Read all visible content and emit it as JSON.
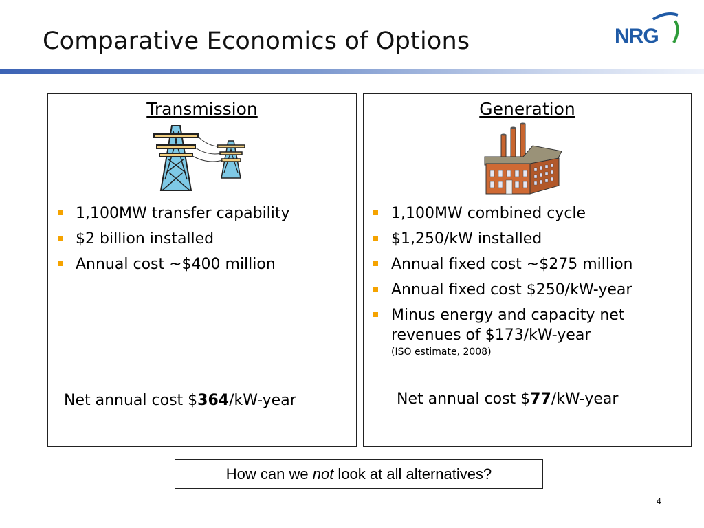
{
  "slide": {
    "title": "Comparative Economics of Options",
    "logo_text": "NRG",
    "page_number": "4"
  },
  "colors": {
    "title_bar": "#3c63b5",
    "bullet": "#f5a300",
    "logo_blue": "#1f5aa6",
    "logo_green": "#2e9b3a"
  },
  "transmission": {
    "heading": "Transmission",
    "icon": "transmission-tower-icon",
    "bullets": [
      "1,100MW transfer capability",
      "$2 billion installed",
      "Annual cost ~$400 million"
    ],
    "net_cost": {
      "prefix": "Net annual cost $",
      "value": "364",
      "suffix": "/kW-year"
    }
  },
  "generation": {
    "heading": "Generation",
    "icon": "factory-icon",
    "bullets": [
      "1,100MW combined cycle",
      "$1,250/kW installed",
      "Annual fixed cost ~$275 million",
      "Annual fixed cost $250/kW-year",
      "Minus energy and capacity net revenues of $173/kW-year"
    ],
    "note": "(ISO estimate, 2008)",
    "net_cost": {
      "prefix": "Net annual cost $",
      "value": "77",
      "suffix": "/kW-year"
    }
  },
  "question": {
    "before": "How can we ",
    "emphasis": "not",
    "after": " look at all alternatives?"
  }
}
